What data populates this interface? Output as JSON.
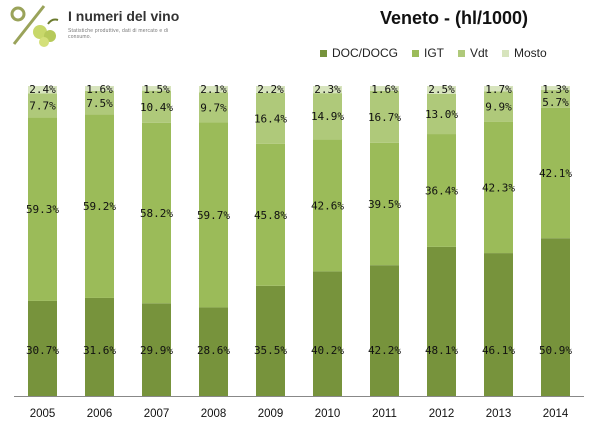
{
  "header": {
    "logo_title": "I numeri del vino",
    "logo_subtitle": "Statistiche produttive, dati di mercato e di consumo.",
    "logo_icon": "grape-percent-logo"
  },
  "chart_data": {
    "type": "bar",
    "stacked": true,
    "normalized_percent": true,
    "title": "Veneto - (hl/1000)",
    "categories": [
      "2005",
      "2006",
      "2007",
      "2008",
      "2009",
      "2010",
      "2011",
      "2012",
      "2013",
      "2014"
    ],
    "series": [
      {
        "name": "DOC/DOCG",
        "color": "#77933c",
        "values": [
          30.7,
          31.6,
          29.9,
          28.6,
          35.5,
          40.2,
          42.2,
          48.1,
          46.1,
          50.9
        ]
      },
      {
        "name": "IGT",
        "color": "#9bbb59",
        "values": [
          59.3,
          59.2,
          58.2,
          59.7,
          45.8,
          42.6,
          39.5,
          36.4,
          42.3,
          42.1
        ]
      },
      {
        "name": "Vdt",
        "color": "#afc97a",
        "values": [
          7.7,
          7.5,
          10.4,
          9.7,
          16.4,
          14.9,
          16.7,
          13.0,
          9.9,
          5.7
        ]
      },
      {
        "name": "Mosto",
        "color": "#d7e4bd",
        "values": [
          2.4,
          1.6,
          1.5,
          2.1,
          2.2,
          2.3,
          1.6,
          2.5,
          1.7,
          1.3
        ]
      }
    ],
    "labels": [
      [
        "30.7%",
        "31.6%",
        "29.9%",
        "28.6%",
        "35.5%",
        "40.2%",
        "42.2%",
        "48.1%",
        "46.1%",
        "50.9%"
      ],
      [
        "59.3%",
        "59.2%",
        "58.2%",
        "59.7%",
        "45.8%",
        "42.6%",
        "39.5%",
        "36.4%",
        "42.3%",
        "42.1%"
      ],
      [
        "7.7%",
        "7.5%",
        "10.4%",
        "9.7%",
        "16.4%",
        "14.9%",
        "16.7%",
        "13.0%",
        "9.9%",
        "5.7%"
      ],
      [
        "2.4%",
        "1.6%",
        "1.5%",
        "2.1%",
        "2.2%",
        "2.3%",
        "1.6%",
        "2.5%",
        "1.7%",
        "1.3%"
      ]
    ],
    "ylim": [
      0,
      100
    ],
    "legend_position": "top-right",
    "grid": false
  }
}
